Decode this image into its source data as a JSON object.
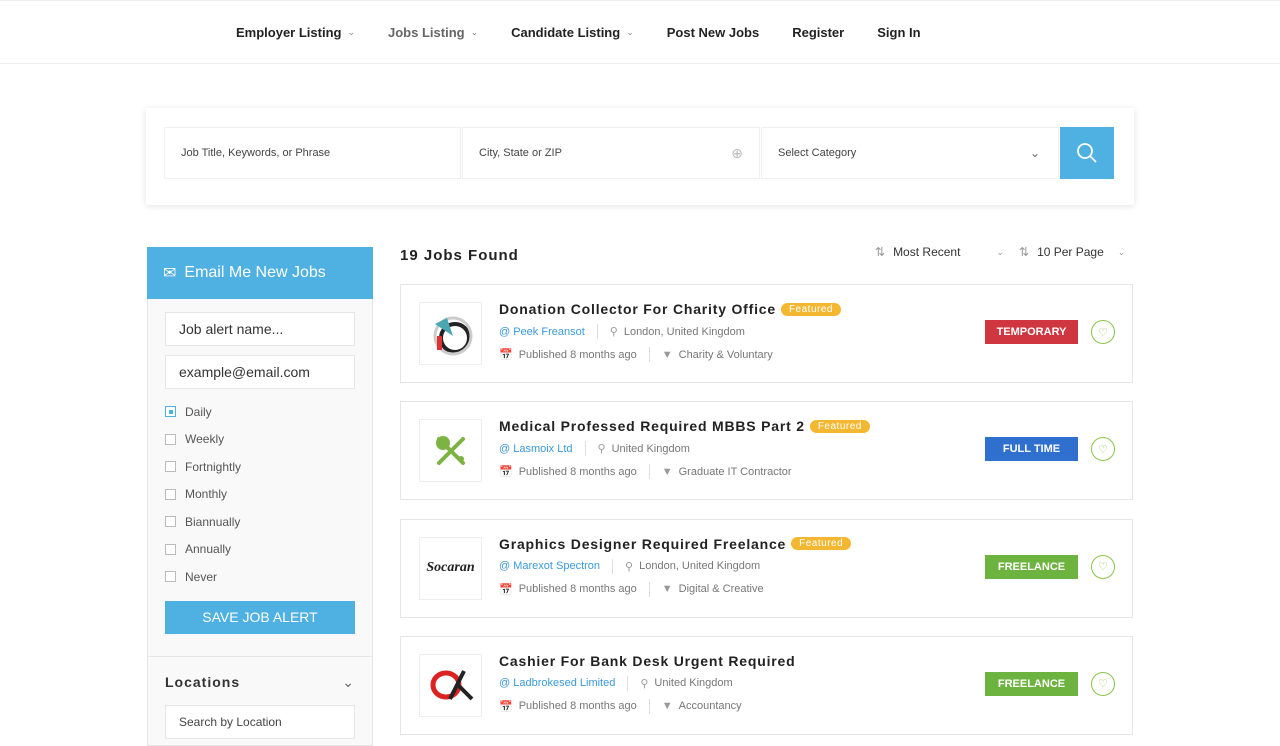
{
  "nav": [
    {
      "label": "Employer Listing",
      "dropdown": true
    },
    {
      "label": "Jobs Listing",
      "dropdown": true,
      "active": true
    },
    {
      "label": "Candidate Listing",
      "dropdown": true
    },
    {
      "label": "Post New Jobs"
    },
    {
      "label": "Register"
    },
    {
      "label": "Sign In"
    }
  ],
  "search": {
    "keyword_placeholder": "Job Title, Keywords, or Phrase",
    "location_placeholder": "City, State or ZIP",
    "category": "Select Category",
    "button_icon": "search-icon"
  },
  "alert": {
    "title": "Email Me New Jobs",
    "name_placeholder": "Job alert name...",
    "email_placeholder": "example@email.com",
    "frequencies": [
      "Daily",
      "Weekly",
      "Fortnightly",
      "Monthly",
      "Biannually",
      "Annually",
      "Never"
    ],
    "selected": "Daily",
    "save_label": "SAVE JOB ALERT"
  },
  "locations": {
    "title": "Locations",
    "placeholder": "Search by Location"
  },
  "results": {
    "count_label": "19 Jobs Found",
    "sort": "Most Recent",
    "per_page": "10 Per Page"
  },
  "colors": {
    "accent": "#4fb0e2",
    "featured": "#f4b731",
    "temporary": "#d0363f",
    "full_time": "#2f6fce",
    "freelance": "#6db33f"
  },
  "jobs": [
    {
      "title": "Donation Collector For Charity Office",
      "featured": "Featured",
      "company": "@ Peek Freansot",
      "location": "London, United Kingdom",
      "published": "Published 8 months ago",
      "category": "Charity & Voluntary",
      "type": "TEMPORARY",
      "type_color": "#d0363f"
    },
    {
      "title": "Medical Professed Required MBBS Part 2",
      "featured": "Featured",
      "company": "@ Lasmoix Ltd",
      "location": "United Kingdom",
      "published": "Published 8 months ago",
      "category": "Graduate IT Contractor",
      "type": "FULL TIME",
      "type_color": "#2f6fce"
    },
    {
      "title": "Graphics Designer Required Freelance",
      "featured": "Featured",
      "company": "@ Marexot Spectron",
      "location": "London, United Kingdom",
      "published": "Published 8 months ago",
      "category": "Digital & Creative",
      "type": "FREELANCE",
      "type_color": "#6db33f",
      "logo_text": "Socaran"
    },
    {
      "title": "Cashier For Bank Desk Urgent Required",
      "company": "@ Ladbrokesed Limited",
      "location": "United Kingdom",
      "published": "Published 8 months ago",
      "category": "Accountancy",
      "type": "FREELANCE",
      "type_color": "#6db33f"
    }
  ]
}
